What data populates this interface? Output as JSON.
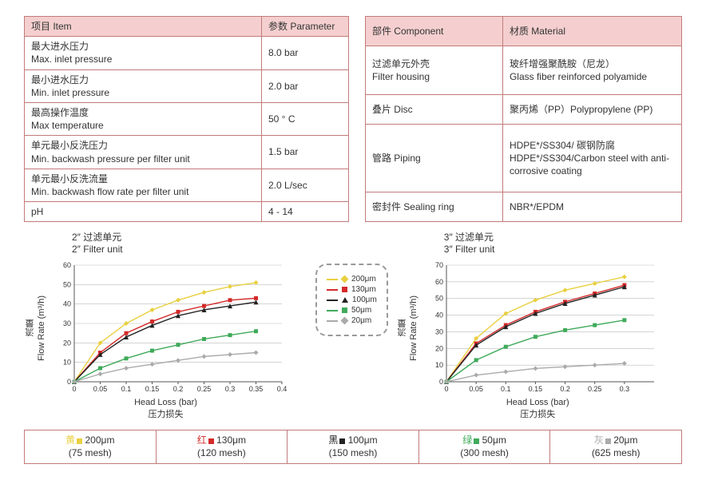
{
  "left_table": {
    "headers": [
      "项目 Item",
      "参数 Parameter"
    ],
    "rows": [
      [
        "最大进水压力\nMax. inlet pressure",
        "8.0 bar"
      ],
      [
        "最小进水压力\nMin. inlet pressure",
        "2.0 bar"
      ],
      [
        "最高操作温度\nMax temperature",
        "50 ° C"
      ],
      [
        "单元最小反洗压力\nMin. backwash pressure per filter unit",
        "1.5 bar"
      ],
      [
        "单元最小反洗流量\nMin. backwash flow rate per filter unit",
        "2.0 L/sec"
      ],
      [
        "pH",
        "4 - 14"
      ]
    ]
  },
  "right_table": {
    "headers": [
      "部件 Component",
      "材质 Material"
    ],
    "rows": [
      [
        "过滤单元外壳\nFilter housing",
        "玻纤增强聚酰胺（尼龙）\nGlass fiber reinforced polyamide"
      ],
      [
        "叠片 Disc",
        "聚丙烯（PP）Polypropylene (PP)"
      ],
      [
        "管路 Piping",
        "HDPE*/SS304/ 碳钢防腐\nHDPE*/SS304/Carbon steel with anti-corrosive coating"
      ],
      [
        "密封件 Sealing ring",
        "NBR*/EPDM"
      ]
    ]
  },
  "colors": {
    "yellow": "#e8d040",
    "red": "#d42a2a",
    "black": "#222222",
    "green": "#3faa5a",
    "gray": "#aaaaaa",
    "grid": "#bbbbbb",
    "axis": "#555555",
    "text": "#333333"
  },
  "chart_left": {
    "title_cn": "2″ 过滤单元",
    "title_en": "2″ Filter unit",
    "ylabel_cn": "流量",
    "ylabel_en": "Flow Rate (m³/h)",
    "xlabel_en": "Head Loss (bar)",
    "xlabel_cn": "压力损失",
    "xlim": [
      0,
      0.4
    ],
    "ylim": [
      0,
      60
    ],
    "xticks": [
      0,
      0.05,
      0.1,
      0.15,
      0.2,
      0.25,
      0.3,
      0.35,
      0.4
    ],
    "yticks": [
      0,
      10,
      20,
      30,
      40,
      50,
      60
    ],
    "series": [
      {
        "name": "200μm",
        "color": "yellow",
        "marker": "diamond",
        "x": [
          0,
          0.05,
          0.1,
          0.15,
          0.2,
          0.25,
          0.3,
          0.35
        ],
        "y": [
          0,
          20,
          30,
          37,
          42,
          46,
          49,
          51
        ]
      },
      {
        "name": "130μm",
        "color": "red",
        "marker": "square",
        "x": [
          0,
          0.05,
          0.1,
          0.15,
          0.2,
          0.25,
          0.3,
          0.35
        ],
        "y": [
          0,
          15,
          25,
          31,
          36,
          39,
          42,
          43
        ]
      },
      {
        "name": "100μm",
        "color": "black",
        "marker": "triangle",
        "x": [
          0,
          0.05,
          0.1,
          0.15,
          0.2,
          0.25,
          0.3,
          0.35
        ],
        "y": [
          0,
          14,
          23,
          29,
          34,
          37,
          39,
          41
        ]
      },
      {
        "name": "50μm",
        "color": "green",
        "marker": "square",
        "x": [
          0,
          0.05,
          0.1,
          0.15,
          0.2,
          0.25,
          0.3,
          0.35
        ],
        "y": [
          0,
          7,
          12,
          16,
          19,
          22,
          24,
          26
        ]
      },
      {
        "name": "20μm",
        "color": "gray",
        "marker": "diamond",
        "x": [
          0,
          0.05,
          0.1,
          0.15,
          0.2,
          0.25,
          0.3,
          0.35
        ],
        "y": [
          0,
          4,
          7,
          9,
          11,
          13,
          14,
          15
        ]
      }
    ]
  },
  "chart_right": {
    "title_cn": "3″ 过滤单元",
    "title_en": "3″ Filter unit",
    "ylabel_cn": "流量",
    "ylabel_en": "Flow Rate (m³/h)",
    "xlabel_en": "Head Loss (bar)",
    "xlabel_cn": "压力损失",
    "xlim": [
      0,
      0.35
    ],
    "ylim": [
      0,
      70
    ],
    "xticks": [
      0,
      0.05,
      0.1,
      0.15,
      0.2,
      0.25,
      0.3
    ],
    "yticks": [
      0,
      10,
      20,
      30,
      40,
      50,
      60,
      70
    ],
    "series": [
      {
        "name": "200μm",
        "color": "yellow",
        "marker": "diamond",
        "x": [
          0,
          0.05,
          0.1,
          0.15,
          0.2,
          0.25,
          0.3
        ],
        "y": [
          0,
          26,
          41,
          49,
          55,
          59,
          63
        ]
      },
      {
        "name": "130μm",
        "color": "red",
        "marker": "square",
        "x": [
          0,
          0.05,
          0.1,
          0.15,
          0.2,
          0.25,
          0.3
        ],
        "y": [
          0,
          23,
          34,
          42,
          48,
          53,
          58
        ]
      },
      {
        "name": "100μm",
        "color": "black",
        "marker": "triangle",
        "x": [
          0,
          0.05,
          0.1,
          0.15,
          0.2,
          0.25,
          0.3
        ],
        "y": [
          0,
          22,
          33,
          41,
          47,
          52,
          57
        ]
      },
      {
        "name": "50μm",
        "color": "green",
        "marker": "square",
        "x": [
          0,
          0.05,
          0.1,
          0.15,
          0.2,
          0.25,
          0.3
        ],
        "y": [
          0,
          13,
          21,
          27,
          31,
          34,
          37
        ]
      },
      {
        "name": "20μm",
        "color": "gray",
        "marker": "diamond",
        "x": [
          0,
          0.05,
          0.1,
          0.15,
          0.2,
          0.25,
          0.3
        ],
        "y": [
          0,
          4,
          6,
          8,
          9,
          10,
          11
        ]
      }
    ]
  },
  "mid_legend": [
    {
      "label": "200μm",
      "color": "yellow",
      "marker": "diamond"
    },
    {
      "label": "130μm",
      "color": "red",
      "marker": "square"
    },
    {
      "label": "100μm",
      "color": "black",
      "marker": "triangle"
    },
    {
      "label": "50μm",
      "color": "green",
      "marker": "square"
    },
    {
      "label": "20μm",
      "color": "gray",
      "marker": "diamond"
    }
  ],
  "bottom_legend": [
    {
      "label_cn": "黄",
      "color": "yellow",
      "size": "200μm",
      "mesh": "(75 mesh)"
    },
    {
      "label_cn": "红",
      "color": "red",
      "size": "130μm",
      "mesh": "(120 mesh)"
    },
    {
      "label_cn": "黑",
      "color": "black",
      "size": "100μm",
      "mesh": "(150 mesh)"
    },
    {
      "label_cn": "绿",
      "color": "green",
      "size": "50μm",
      "mesh": "(300 mesh)"
    },
    {
      "label_cn": "灰",
      "color": "gray",
      "size": "20μm",
      "mesh": "(625 mesh)"
    }
  ]
}
